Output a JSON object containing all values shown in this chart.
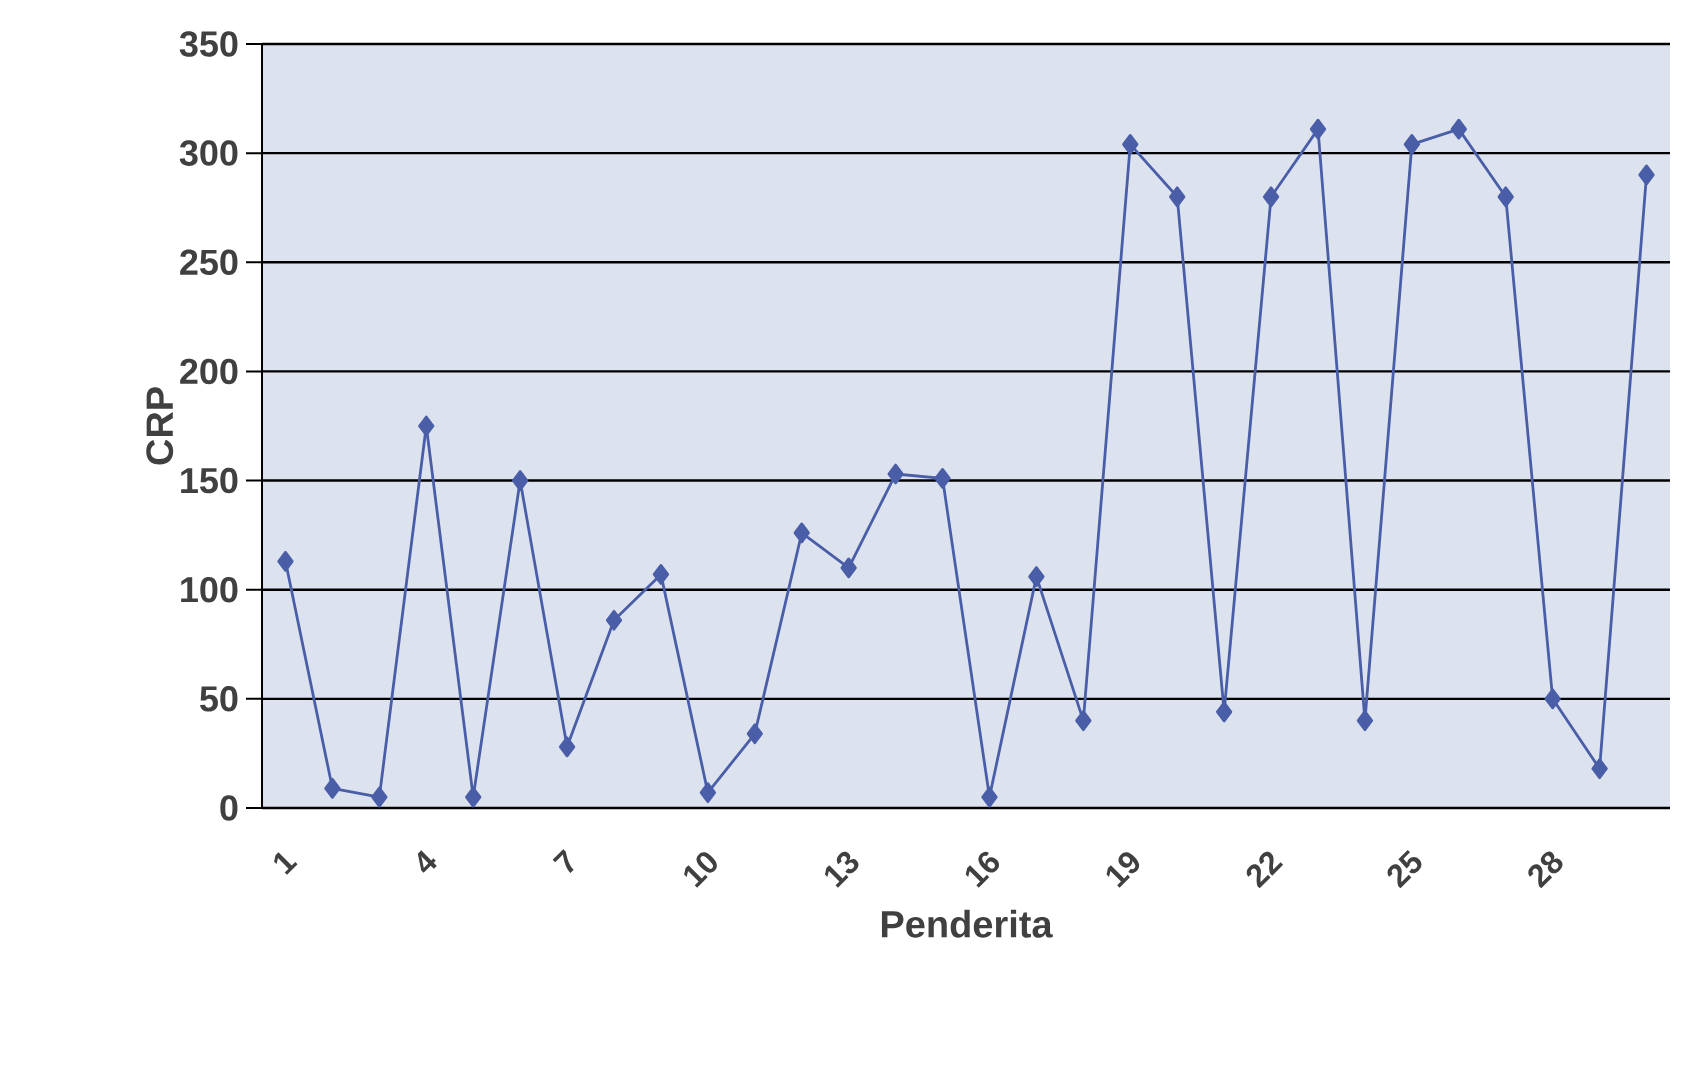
{
  "chart_data": {
    "type": "line",
    "xlabel": "Penderita",
    "ylabel": "CRP",
    "categories": [
      "1",
      null,
      null,
      "4",
      null,
      null,
      "7",
      null,
      null,
      "10",
      null,
      null,
      "13",
      null,
      null,
      "16",
      null,
      null,
      "19",
      null,
      null,
      "22",
      null,
      null,
      "25",
      null,
      null,
      "28",
      null,
      null
    ],
    "series": [
      {
        "color": "#4a5ea8",
        "values": [
          113,
          9,
          5,
          175,
          5,
          150,
          28,
          86,
          107,
          7,
          34,
          126,
          110,
          153,
          151,
          5,
          106,
          40,
          304,
          280,
          44,
          280,
          311,
          40,
          304,
          311,
          280,
          50,
          18,
          290
        ]
      }
    ],
    "ylim": [
      0,
      350
    ],
    "yticks": [
      0,
      50,
      100,
      150,
      200,
      250,
      300,
      350
    ],
    "grid": "y",
    "marker": "diamond",
    "line_style": "solid"
  }
}
